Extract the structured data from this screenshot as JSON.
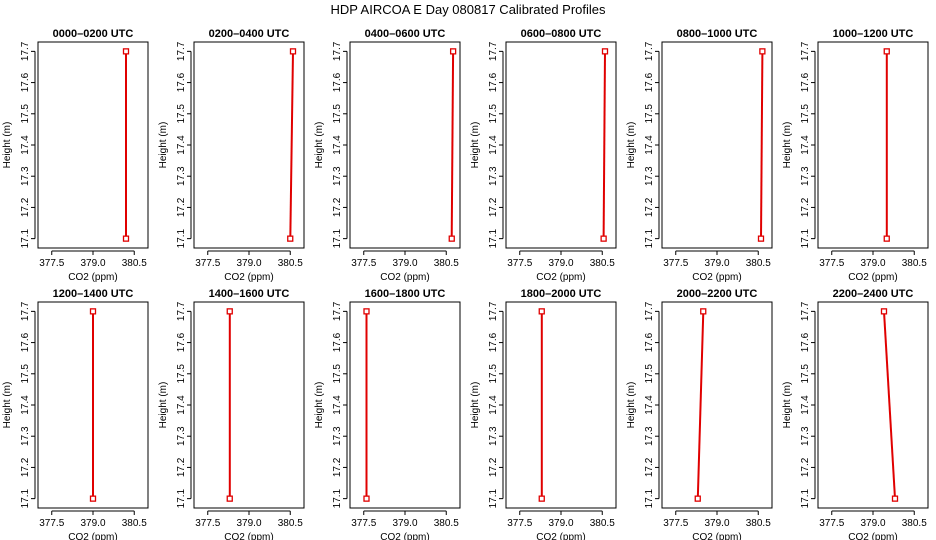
{
  "title": "HDP AIRCOA E  Day 080817  Calibrated Profiles",
  "chart_data": [
    {
      "type": "line",
      "title": "0000–0200 UTC",
      "xlabel": "CO2 (ppm)",
      "ylabel": "Height (m)",
      "xlim": [
        377.0,
        381.0
      ],
      "ylim": [
        17.07,
        17.73
      ],
      "xticks": [
        "377.5",
        "379.0",
        "380.5"
      ],
      "yticks": [
        "17.1",
        "17.2",
        "17.3",
        "17.4",
        "17.5",
        "17.6",
        "17.7"
      ],
      "series": [
        {
          "x": [
            380.2,
            380.2
          ],
          "y": [
            17.1,
            17.7
          ]
        }
      ]
    },
    {
      "type": "line",
      "title": "0200–0400 UTC",
      "xlabel": "CO2 (ppm)",
      "ylabel": "Height (m)",
      "xlim": [
        377.0,
        381.0
      ],
      "ylim": [
        17.07,
        17.73
      ],
      "xticks": [
        "377.5",
        "379.0",
        "380.5"
      ],
      "yticks": [
        "17.1",
        "17.2",
        "17.3",
        "17.4",
        "17.5",
        "17.6",
        "17.7"
      ],
      "series": [
        {
          "x": [
            380.5,
            380.6
          ],
          "y": [
            17.1,
            17.7
          ]
        }
      ]
    },
    {
      "type": "line",
      "title": "0400–0600 UTC",
      "xlabel": "CO2 (ppm)",
      "ylabel": "Height (m)",
      "xlim": [
        377.0,
        381.0
      ],
      "ylim": [
        17.07,
        17.73
      ],
      "xticks": [
        "377.5",
        "379.0",
        "380.5"
      ],
      "yticks": [
        "17.1",
        "17.2",
        "17.3",
        "17.4",
        "17.5",
        "17.6",
        "17.7"
      ],
      "series": [
        {
          "x": [
            380.7,
            380.75
          ],
          "y": [
            17.1,
            17.7
          ]
        }
      ]
    },
    {
      "type": "line",
      "title": "0600–0800 UTC",
      "xlabel": "CO2 (ppm)",
      "ylabel": "Height (m)",
      "xlim": [
        377.0,
        381.0
      ],
      "ylim": [
        17.07,
        17.73
      ],
      "xticks": [
        "377.5",
        "379.0",
        "380.5"
      ],
      "yticks": [
        "17.1",
        "17.2",
        "17.3",
        "17.4",
        "17.5",
        "17.6",
        "17.7"
      ],
      "series": [
        {
          "x": [
            380.55,
            380.6
          ],
          "y": [
            17.1,
            17.7
          ]
        }
      ]
    },
    {
      "type": "line",
      "title": "0800–1000 UTC",
      "xlabel": "CO2 (ppm)",
      "ylabel": "Height (m)",
      "xlim": [
        377.0,
        381.0
      ],
      "ylim": [
        17.07,
        17.73
      ],
      "xticks": [
        "377.5",
        "379.0",
        "380.5"
      ],
      "yticks": [
        "17.1",
        "17.2",
        "17.3",
        "17.4",
        "17.5",
        "17.6",
        "17.7"
      ],
      "series": [
        {
          "x": [
            380.6,
            380.65
          ],
          "y": [
            17.1,
            17.7
          ]
        }
      ]
    },
    {
      "type": "line",
      "title": "1000–1200 UTC",
      "xlabel": "CO2 (ppm)",
      "ylabel": "Height (m)",
      "xlim": [
        377.0,
        381.0
      ],
      "ylim": [
        17.07,
        17.73
      ],
      "xticks": [
        "377.5",
        "379.0",
        "380.5"
      ],
      "yticks": [
        "17.1",
        "17.2",
        "17.3",
        "17.4",
        "17.5",
        "17.6",
        "17.7"
      ],
      "series": [
        {
          "x": [
            379.5,
            379.5
          ],
          "y": [
            17.1,
            17.7
          ]
        }
      ]
    },
    {
      "type": "line",
      "title": "1200–1400 UTC",
      "xlabel": "CO2 (ppm)",
      "ylabel": "Height (m)",
      "xlim": [
        377.0,
        381.0
      ],
      "ylim": [
        17.07,
        17.73
      ],
      "xticks": [
        "377.5",
        "379.0",
        "380.5"
      ],
      "yticks": [
        "17.1",
        "17.2",
        "17.3",
        "17.4",
        "17.5",
        "17.6",
        "17.7"
      ],
      "series": [
        {
          "x": [
            379.0,
            379.0
          ],
          "y": [
            17.1,
            17.7
          ]
        }
      ]
    },
    {
      "type": "line",
      "title": "1400–1600 UTC",
      "xlabel": "CO2 (ppm)",
      "ylabel": "Height (m)",
      "xlim": [
        377.0,
        381.0
      ],
      "ylim": [
        17.07,
        17.73
      ],
      "xticks": [
        "377.5",
        "379.0",
        "380.5"
      ],
      "yticks": [
        "17.1",
        "17.2",
        "17.3",
        "17.4",
        "17.5",
        "17.6",
        "17.7"
      ],
      "series": [
        {
          "x": [
            378.3,
            378.3
          ],
          "y": [
            17.1,
            17.7
          ]
        }
      ]
    },
    {
      "type": "line",
      "title": "1600–1800 UTC",
      "xlabel": "CO2 (ppm)",
      "ylabel": "Height (m)",
      "xlim": [
        377.0,
        381.0
      ],
      "ylim": [
        17.07,
        17.73
      ],
      "xticks": [
        "377.5",
        "379.0",
        "380.5"
      ],
      "yticks": [
        "17.1",
        "17.2",
        "17.3",
        "17.4",
        "17.5",
        "17.6",
        "17.7"
      ],
      "series": [
        {
          "x": [
            377.6,
            377.6
          ],
          "y": [
            17.1,
            17.7
          ]
        }
      ]
    },
    {
      "type": "line",
      "title": "1800–2000 UTC",
      "xlabel": "CO2 (ppm)",
      "ylabel": "Height (m)",
      "xlim": [
        377.0,
        381.0
      ],
      "ylim": [
        17.07,
        17.73
      ],
      "xticks": [
        "377.5",
        "379.0",
        "380.5"
      ],
      "yticks": [
        "17.1",
        "17.2",
        "17.3",
        "17.4",
        "17.5",
        "17.6",
        "17.7"
      ],
      "series": [
        {
          "x": [
            378.3,
            378.3
          ],
          "y": [
            17.1,
            17.7
          ]
        }
      ]
    },
    {
      "type": "line",
      "title": "2000–2200 UTC",
      "xlabel": "CO2 (ppm)",
      "ylabel": "Height (m)",
      "xlim": [
        377.0,
        381.0
      ],
      "ylim": [
        17.07,
        17.73
      ],
      "xticks": [
        "377.5",
        "379.0",
        "380.5"
      ],
      "yticks": [
        "17.1",
        "17.2",
        "17.3",
        "17.4",
        "17.5",
        "17.6",
        "17.7"
      ],
      "series": [
        {
          "x": [
            378.3,
            378.5
          ],
          "y": [
            17.1,
            17.7
          ]
        }
      ]
    },
    {
      "type": "line",
      "title": "2200–2400 UTC",
      "xlabel": "CO2 (ppm)",
      "ylabel": "Height (m)",
      "xlim": [
        377.0,
        381.0
      ],
      "ylim": [
        17.07,
        17.73
      ],
      "xticks": [
        "377.5",
        "379.0",
        "380.5"
      ],
      "yticks": [
        "17.1",
        "17.2",
        "17.3",
        "17.4",
        "17.5",
        "17.6",
        "17.7"
      ],
      "series": [
        {
          "x": [
            379.8,
            379.4
          ],
          "y": [
            17.1,
            17.7
          ]
        }
      ]
    }
  ],
  "colors": {
    "line": "#e00000",
    "axis": "#000000"
  }
}
